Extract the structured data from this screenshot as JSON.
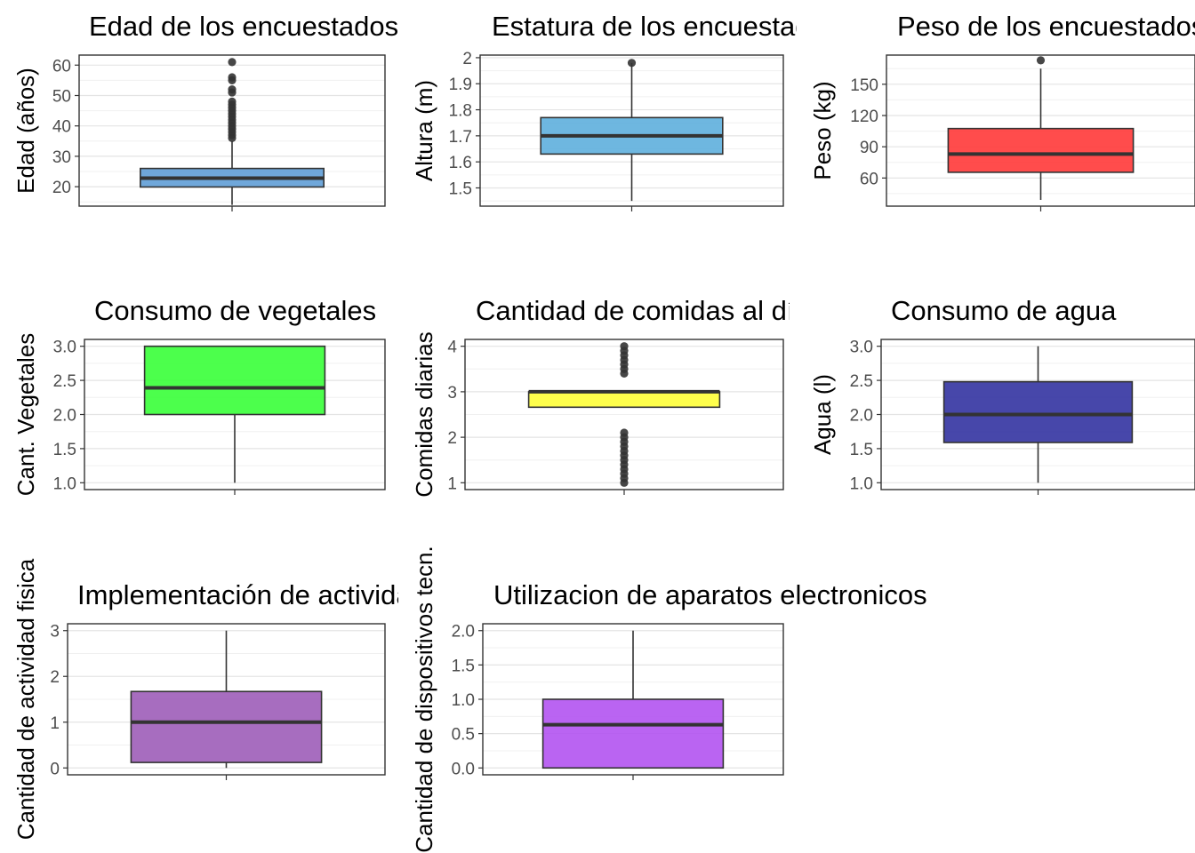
{
  "chart_data": [
    {
      "type": "box",
      "title": "Edad de los encuestados",
      "ylabel": "Edad (años)",
      "ylim": [
        13.6,
        63.3
      ],
      "yticks": [
        20,
        30,
        40,
        50,
        60
      ],
      "fill": "#5b9bd5",
      "box": {
        "q1": 19.9,
        "median": 22.8,
        "q3": 26.0,
        "whisker_low": 14,
        "whisker_high": 35
      },
      "outliers": [
        36,
        37,
        38,
        39,
        40,
        41,
        42,
        43,
        44,
        45,
        46,
        47,
        48,
        51,
        52,
        55,
        56,
        61
      ]
    },
    {
      "type": "box",
      "title": "Estatura de los encuestados",
      "ylabel": "Altura (m)",
      "ylim": [
        1.43,
        2.01
      ],
      "yticks": [
        1.5,
        1.6,
        1.7,
        1.8,
        1.9,
        2.0
      ],
      "fill": "#5aaddc",
      "box": {
        "q1": 1.63,
        "median": 1.7,
        "q3": 1.77,
        "whisker_low": 1.45,
        "whisker_high": 1.98
      },
      "outliers": [
        1.98
      ]
    },
    {
      "type": "box",
      "title": "Peso de los encuestados",
      "ylabel": "Peso (kg)",
      "ylim": [
        33,
        178
      ],
      "yticks": [
        60,
        90,
        120,
        150
      ],
      "fill": "#ff3333",
      "box": {
        "q1": 65.5,
        "median": 83,
        "q3": 107.5,
        "whisker_low": 39,
        "whisker_high": 165
      },
      "outliers": [
        173
      ]
    },
    {
      "type": "box",
      "title": "Consumo de vegetales",
      "ylabel": "Cant. Vegetales",
      "ylim": [
        0.9,
        3.1
      ],
      "yticks": [
        "1.0",
        "1.5",
        "2.0",
        "2.5",
        "3.0"
      ],
      "fill": "#33ff33",
      "box": {
        "q1": 2.0,
        "median": 2.39,
        "q3": 3.0,
        "whisker_low": 1.0,
        "whisker_high": 3.0
      },
      "outliers": []
    },
    {
      "type": "box",
      "title": "Cantidad de comidas al día",
      "ylabel": "Comidas diarias",
      "ylim": [
        0.85,
        4.15
      ],
      "yticks": [
        1,
        2,
        3,
        4
      ],
      "fill": "#ffff33",
      "box": {
        "q1": 2.66,
        "median": 3.0,
        "q3": 3.0,
        "whisker_low": 2.66,
        "whisker_high": 3.0
      },
      "outliers": [
        1.0,
        1.1,
        1.2,
        1.3,
        1.4,
        1.5,
        1.6,
        1.7,
        1.8,
        1.9,
        2.0,
        2.1,
        3.4,
        3.5,
        3.6,
        3.7,
        3.8,
        3.9,
        4.0
      ]
    },
    {
      "type": "box",
      "title": "Consumo de agua",
      "ylabel": "Agua (l)",
      "ylim": [
        0.9,
        3.1
      ],
      "yticks": [
        "1.0",
        "1.5",
        "2.0",
        "2.5",
        "3.0"
      ],
      "fill": "#2e2e9e",
      "box": {
        "q1": 1.59,
        "median": 2.0,
        "q3": 2.48,
        "whisker_low": 1.0,
        "whisker_high": 3.0
      },
      "outliers": []
    },
    {
      "type": "box",
      "title": "Implementación de actividad física",
      "ylabel": "Cantidad de actividad fisica",
      "ylim": [
        -0.15,
        3.15
      ],
      "yticks": [
        0,
        1,
        2,
        3
      ],
      "fill": "#9b59b6",
      "box": {
        "q1": 0.12,
        "median": 1.0,
        "q3": 1.67,
        "whisker_low": 0.0,
        "whisker_high": 3.0
      },
      "outliers": []
    },
    {
      "type": "box",
      "title": "Utilizacion de aparatos electronicos",
      "ylabel": "Cantidad de dispositivos tecn.",
      "ylim": [
        -0.1,
        2.1
      ],
      "yticks": [
        "0.0",
        "0.5",
        "1.0",
        "1.5",
        "2.0"
      ],
      "fill": "#b04ef0",
      "box": {
        "q1": 0.0,
        "median": 0.63,
        "q3": 1.0,
        "whisker_low": 0.0,
        "whisker_high": 2.0
      },
      "outliers": []
    }
  ]
}
